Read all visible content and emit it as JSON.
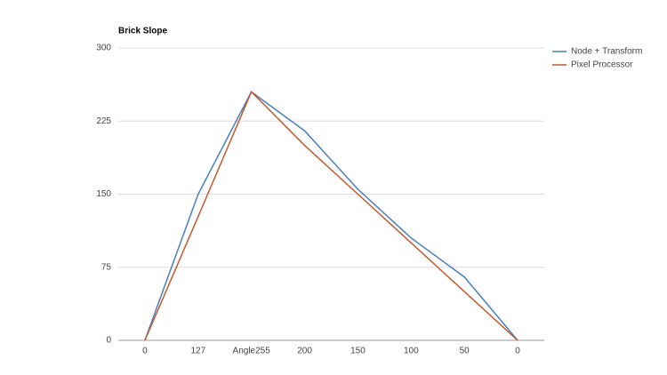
{
  "chart_data": {
    "type": "line",
    "title": "Brick Slope",
    "categories": [
      "0",
      "127",
      "Angle255",
      "200",
      "150",
      "100",
      "50",
      "0"
    ],
    "series": [
      {
        "name": "Node + Transform",
        "color": "#4a7ebf",
        "values": [
          0,
          150,
          255,
          215,
          155,
          105,
          65,
          0
        ]
      },
      {
        "name": "Pixel Processor",
        "color": "#c5582e",
        "values": [
          0,
          127,
          255,
          200,
          150,
          100,
          50,
          0
        ]
      }
    ],
    "ylim": [
      0,
      300
    ],
    "yticks": [
      0,
      75,
      150,
      225,
      300
    ],
    "grid": true,
    "legend": "right"
  }
}
